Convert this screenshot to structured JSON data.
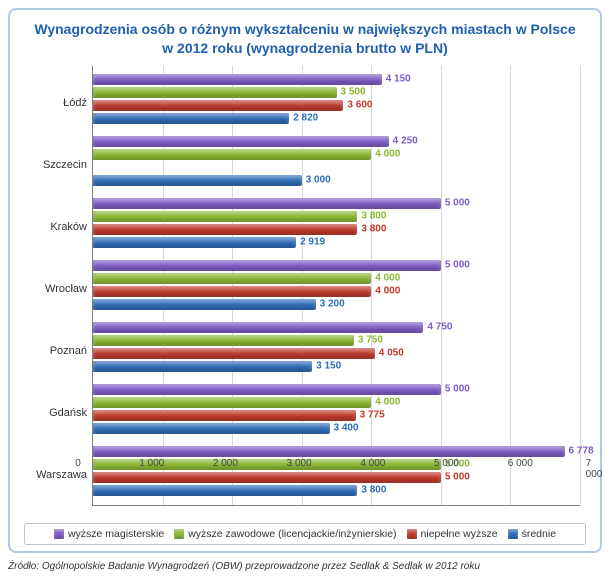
{
  "chart": {
    "type": "horizontal-grouped-bar",
    "title_line1": "Wynagrodzenia osób o różnym wykształceniu w największych miastach w Polsce",
    "title_line2": "w 2012 roku (wynagrodzenia brutto w PLN)",
    "source": "Źródło: Ogólnopolskie Badanie Wynagrodzeń (OBW) przeprowadzone przez Sedlak & Sedlak w 2012 roku",
    "xmin": 0,
    "xmax": 7000,
    "xtick_step": 1000,
    "xtick_labels": [
      "0",
      "1 000",
      "2 000",
      "3 000",
      "4 000",
      "5 000",
      "6 000",
      "7 000"
    ],
    "grid_color": "#d8d8d8",
    "axis_color": "#808080",
    "background_color": "#ffffff",
    "border_color": "#b0c8e8",
    "title_color": "#1f5fb0",
    "label_fontsize": 11,
    "value_fontsize": 10,
    "series": [
      {
        "key": "magister",
        "label": "wyższe magisterskie",
        "color": "#7d5cc6"
      },
      {
        "key": "zawodowe",
        "label": "wyższe zawodowe (licencjackie/inżynierskie)",
        "color": "#8ab833"
      },
      {
        "key": "niepelne",
        "label": "niepełne wyższe",
        "color": "#c0392b"
      },
      {
        "key": "srednie",
        "label": "średnie",
        "color": "#2e6bb8"
      }
    ],
    "cities": [
      {
        "name": "Łódź",
        "values": {
          "magister": 4150,
          "zawodowe": 3500,
          "niepelne": 3600,
          "srednie": 2820
        },
        "labels": {
          "magister": "4 150",
          "zawodowe": "3 500",
          "niepelne": "3 600",
          "srednie": "2 820"
        }
      },
      {
        "name": "Szczecin",
        "values": {
          "magister": 4250,
          "zawodowe": 4000,
          "niepelne": null,
          "srednie": 3000
        },
        "labels": {
          "magister": "4 250",
          "zawodowe": "4 000",
          "niepelne": "",
          "srednie": "3 000"
        }
      },
      {
        "name": "Kraków",
        "values": {
          "magister": 5000,
          "zawodowe": 3800,
          "niepelne": 3800,
          "srednie": 2919
        },
        "labels": {
          "magister": "5 000",
          "zawodowe": "3 800",
          "niepelne": "3 800",
          "srednie": "2 919"
        }
      },
      {
        "name": "Wrocław",
        "values": {
          "magister": 5000,
          "zawodowe": 4000,
          "niepelne": 4000,
          "srednie": 3200
        },
        "labels": {
          "magister": "5 000",
          "zawodowe": "4 000",
          "niepelne": "4 000",
          "srednie": "3 200"
        }
      },
      {
        "name": "Poznań",
        "values": {
          "magister": 4750,
          "zawodowe": 3750,
          "niepelne": 4050,
          "srednie": 3150
        },
        "labels": {
          "magister": "4 750",
          "zawodowe": "3 750",
          "niepelne": "4 050",
          "srednie": "3 150"
        }
      },
      {
        "name": "Gdańsk",
        "values": {
          "magister": 5000,
          "zawodowe": 4000,
          "niepelne": 3775,
          "srednie": 3400
        },
        "labels": {
          "magister": "5 000",
          "zawodowe": "4 000",
          "niepelne": "3 775",
          "srednie": "3 400"
        }
      },
      {
        "name": "Warszawa",
        "values": {
          "magister": 6778,
          "zawodowe": 5000,
          "niepelne": 5000,
          "srednie": 3800
        },
        "labels": {
          "magister": "6 778",
          "zawodowe": "5 000",
          "niepelne": "5 000",
          "srednie": "3 800"
        }
      }
    ]
  }
}
